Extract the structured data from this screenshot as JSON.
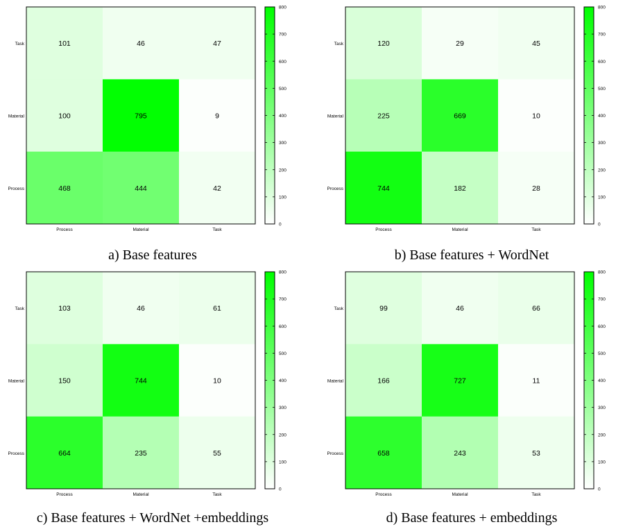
{
  "chart_data": [
    {
      "type": "heatmap",
      "caption": "a) Base features",
      "rows": [
        "Task",
        "Material",
        "Process"
      ],
      "cols": [
        "Process",
        "Material",
        "Task"
      ],
      "values": [
        [
          101,
          46,
          47
        ],
        [
          100,
          795,
          9
        ],
        [
          468,
          444,
          42
        ]
      ],
      "colorbar": {
        "min": 0,
        "max": 800,
        "ticks": [
          "0",
          "100",
          "200",
          "300",
          "400",
          "500",
          "600",
          "700",
          "800"
        ],
        "low_color": "#ffffff",
        "high_color": "#00ff00"
      }
    },
    {
      "type": "heatmap",
      "caption": "b) Base features + WordNet",
      "rows": [
        "Task",
        "Material",
        "Process"
      ],
      "cols": [
        "Process",
        "Material",
        "Task"
      ],
      "values": [
        [
          120,
          29,
          45
        ],
        [
          225,
          669,
          10
        ],
        [
          744,
          182,
          28
        ]
      ],
      "colorbar": {
        "min": 0,
        "max": 800,
        "ticks": [
          "0",
          "100",
          "200",
          "300",
          "400",
          "500",
          "600",
          "700",
          "800"
        ],
        "low_color": "#ffffff",
        "high_color": "#00ff00"
      }
    },
    {
      "type": "heatmap",
      "caption": "c) Base features + WordNet +embeddings",
      "rows": [
        "Task",
        "Material",
        "Process"
      ],
      "cols": [
        "Process",
        "Material",
        "Task"
      ],
      "values": [
        [
          103,
          46,
          61
        ],
        [
          150,
          744,
          10
        ],
        [
          664,
          235,
          55
        ]
      ],
      "colorbar": {
        "min": 0,
        "max": 800,
        "ticks": [
          "0",
          "100",
          "200",
          "300",
          "400",
          "500",
          "600",
          "700",
          "800"
        ],
        "low_color": "#ffffff",
        "high_color": "#00ff00"
      }
    },
    {
      "type": "heatmap",
      "caption": "d) Base features + embeddings",
      "rows": [
        "Task",
        "Material",
        "Process"
      ],
      "cols": [
        "Process",
        "Material",
        "Task"
      ],
      "values": [
        [
          99,
          46,
          66
        ],
        [
          166,
          727,
          11
        ],
        [
          658,
          243,
          53
        ]
      ],
      "colorbar": {
        "min": 0,
        "max": 800,
        "ticks": [
          "0",
          "100",
          "200",
          "300",
          "400",
          "500",
          "600",
          "700",
          "800"
        ],
        "low_color": "#ffffff",
        "high_color": "#00ff00"
      }
    }
  ]
}
